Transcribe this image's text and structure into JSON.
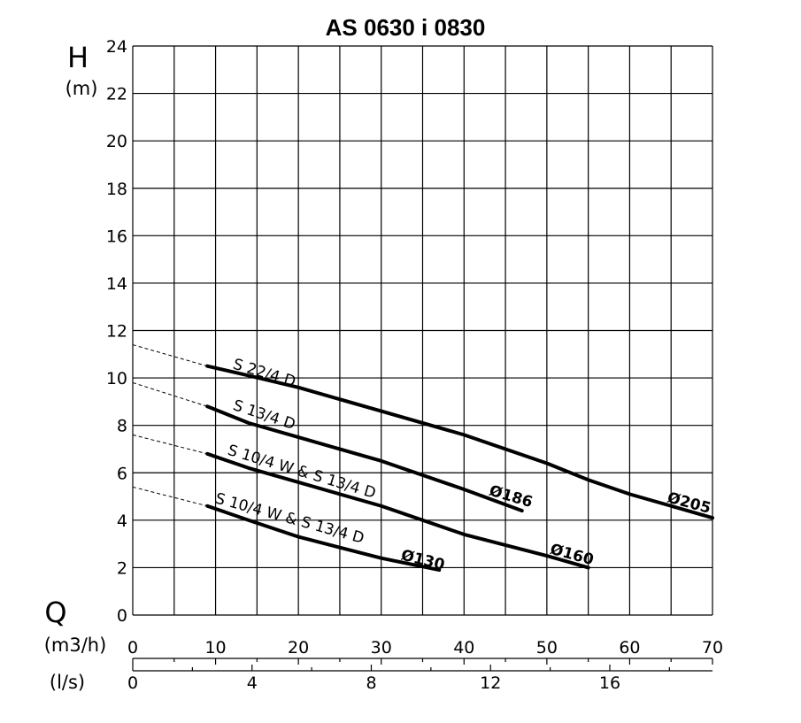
{
  "chart_data": {
    "type": "line",
    "title": "AS 0630 i 0830",
    "y_axis": {
      "symbol": "H",
      "unit": "(m)",
      "range": [
        0,
        24
      ],
      "ticks": [
        "0",
        "2",
        "4",
        "6",
        "8",
        "10",
        "12",
        "14",
        "16",
        "18",
        "20",
        "22",
        "24"
      ]
    },
    "x_axis": {
      "symbol": "Q",
      "unit": "(m3/h)",
      "range": [
        0,
        70
      ],
      "ticks": [
        "0",
        "10",
        "20",
        "30",
        "40",
        "50",
        "60",
        "70"
      ]
    },
    "x_axis_secondary": {
      "unit": "(l/s)",
      "range": [
        0,
        19.44
      ],
      "ticks": [
        "0",
        "4",
        "8",
        "12",
        "16"
      ]
    },
    "grid": true,
    "series": [
      {
        "name": "S 22/4 D",
        "end_label": "Ø205",
        "x": [
          9,
          14,
          20,
          30,
          40,
          50,
          55,
          60,
          65,
          70
        ],
        "y": [
          10.5,
          10.1,
          9.6,
          8.6,
          7.6,
          6.4,
          5.7,
          5.1,
          4.6,
          4.1
        ]
      },
      {
        "name": "S 13/4 D",
        "end_label": "Ø186",
        "x": [
          9,
          14,
          20,
          30,
          40,
          47
        ],
        "y": [
          8.8,
          8.1,
          7.5,
          6.5,
          5.3,
          4.4
        ]
      },
      {
        "name": "S 10/4 W & S 13/4 D",
        "end_label": "Ø160",
        "x": [
          9,
          14,
          20,
          30,
          40,
          50,
          55
        ],
        "y": [
          6.8,
          6.2,
          5.6,
          4.6,
          3.4,
          2.5,
          2.0
        ]
      },
      {
        "name": "S 10/4 W & S 13/4 D",
        "end_label": "Ø130",
        "x": [
          9,
          14,
          20,
          30,
          37
        ],
        "y": [
          4.6,
          4.0,
          3.3,
          2.4,
          1.9
        ]
      }
    ],
    "extrapolation_dashed": [
      {
        "x": [
          0,
          9
        ],
        "y": [
          11.4,
          10.5
        ]
      },
      {
        "x": [
          0,
          9
        ],
        "y": [
          9.8,
          8.8
        ]
      },
      {
        "x": [
          0,
          9
        ],
        "y": [
          7.6,
          6.8
        ]
      },
      {
        "x": [
          0,
          9
        ],
        "y": [
          5.4,
          4.6
        ]
      }
    ]
  }
}
